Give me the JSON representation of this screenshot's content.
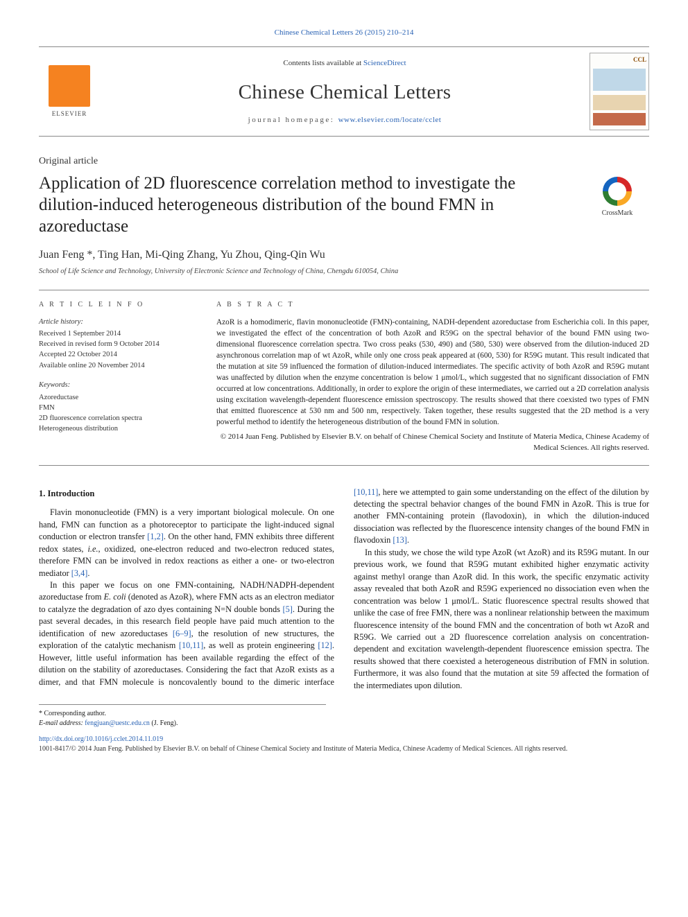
{
  "citation": "Chinese Chemical Letters 26 (2015) 210–214",
  "header": {
    "contents_prefix": "Contents lists available at ",
    "contents_link": "ScienceDirect",
    "journal_name": "Chinese Chemical Letters",
    "homepage_prefix": "journal homepage: ",
    "homepage_url": "www.elsevier.com/locate/cclet",
    "publisher_logo_text": "ELSEVIER",
    "cover_badge": "CCL"
  },
  "article": {
    "type": "Original article",
    "title": "Application of 2D fluorescence correlation method to investigate the dilution-induced heterogeneous distribution of the bound FMN in azoreductase",
    "crossmark_label": "CrossMark",
    "authors": "Juan Feng *, Ting Han, Mi-Qing Zhang, Yu Zhou, Qing-Qin Wu",
    "affiliation": "School of Life Science and Technology, University of Electronic Science and Technology of China, Chengdu 610054, China"
  },
  "info": {
    "heading": "A R T I C L E   I N F O",
    "history_label": "Article history:",
    "received": "Received 1 September 2014",
    "revised": "Received in revised form 9 October 2014",
    "accepted": "Accepted 22 October 2014",
    "online": "Available online 20 November 2014",
    "keywords_label": "Keywords:",
    "keywords": [
      "Azoreductase",
      "FMN",
      "2D fluorescence correlation spectra",
      "Heterogeneous distribution"
    ]
  },
  "abstract": {
    "heading": "A B S T R A C T",
    "text": "AzoR is a homodimeric, flavin mononucleotide (FMN)-containing, NADH-dependent azoreductase from Escherichia coli. In this paper, we investigated the effect of the concentration of both AzoR and R59G on the spectral behavior of the bound FMN using two-dimensional fluorescence correlation spectra. Two cross peaks (530, 490) and (580, 530) were observed from the dilution-induced 2D asynchronous correlation map of wt AzoR, while only one cross peak appeared at (600, 530) for R59G mutant. This result indicated that the mutation at site 59 influenced the formation of dilution-induced intermediates. The specific activity of both AzoR and R59G mutant was unaffected by dilution when the enzyme concentration is below 1 μmol/L, which suggested that no significant dissociation of FMN occurred at low concentrations. Additionally, in order to explore the origin of these intermediates, we carried out a 2D correlation analysis using excitation wavelength-dependent fluorescence emission spectroscopy. The results showed that there coexisted two types of FMN that emitted fluorescence at 530 nm and 500 nm, respectively. Taken together, these results suggested that the 2D method is a very powerful method to identify the heterogeneous distribution of the bound FMN in solution.",
    "copyright": "© 2014 Juan Feng. Published by Elsevier B.V. on behalf of Chinese Chemical Society and Institute of Materia Medica, Chinese Academy of Medical Sciences. All rights reserved."
  },
  "body": {
    "section1_heading": "1. Introduction",
    "p1_a": "Flavin mononucleotide (FMN) is a very important biological molecule. On one hand, FMN can function as a photoreceptor to participate the light-induced signal conduction or electron transfer ",
    "p1_ref1": "[1,2]",
    "p1_b": ". On the other hand, FMN exhibits three different redox states, ",
    "p1_ie": "i.e.",
    "p1_c": ", oxidized, one-electron reduced and two-electron reduced states, therefore FMN can be involved in redox reactions as either a one- or two-electron mediator ",
    "p1_ref2": "[3,4]",
    "p1_d": ".",
    "p2_a": "In this paper we focus on one FMN-containing, NADH/NADPH-dependent azoreductase from ",
    "p2_sp": "E. coli",
    "p2_b": " (denoted as AzoR), where FMN acts as an electron mediator to catalyze the degradation of azo dyes containing N=N double bonds ",
    "p2_ref1": "[5]",
    "p2_c": ". During the past several decades, in this research field people have paid much attention to the identification of new azoreductases ",
    "p2_ref2": "[6–9]",
    "p2_d": ", the resolution of new structures, the exploration of the catalytic mechanism ",
    "p2_ref3": "[10,11]",
    "p2_e": ", as well as protein engineering ",
    "p2_ref4": "[12]",
    "p2_f": ". However, little useful information has been available regarding the effect of the dilution on the stability of azoreductases. Considering the fact that AzoR exists as a ",
    "p3_a": "dimer, and that FMN molecule is noncovalently bound to the dimeric interface ",
    "p3_ref1": "[10,11]",
    "p3_b": ", here we attempted to gain some understanding on the effect of the dilution by detecting the spectral behavior changes of the bound FMN in AzoR. This is true for another FMN-containing protein (flavodoxin), in which the dilution-induced dissociation was reflected by the fluorescence intensity changes of the bound FMN in flavodoxin ",
    "p3_ref2": "[13]",
    "p3_c": ".",
    "p4": "In this study, we chose the wild type AzoR (wt AzoR) and its R59G mutant. In our previous work, we found that R59G mutant exhibited higher enzymatic activity against methyl orange than AzoR did. In this work, the specific enzymatic activity assay revealed that both AzoR and R59G experienced no dissociation even when the concentration was below 1 μmol/L. Static fluorescence spectral results showed that unlike the case of free FMN, there was a nonlinear relationship between the maximum fluorescence intensity of the bound FMN and the concentration of both wt AzoR and R59G. We carried out a 2D fluorescence correlation analysis on concentration-dependent and excitation wavelength-dependent fluorescence emission spectra. The results showed that there coexisted a heterogeneous distribution of FMN in solution. Furthermore, it was also found that the mutation at site 59 affected the formation of the intermediates upon dilution."
  },
  "footnotes": {
    "corresponding": "* Corresponding author.",
    "email_label": "E-mail address: ",
    "email": "fengjuan@uestc.edu.cn",
    "email_suffix": " (J. Feng)."
  },
  "doi": {
    "url": "http://dx.doi.org/10.1016/j.cclet.2014.11.019",
    "issn_line": "1001-8417/© 2014 Juan Feng. Published by Elsevier B.V. on behalf of Chinese Chemical Society and Institute of Materia Medica, Chinese Academy of Medical Sciences. All rights reserved."
  },
  "colors": {
    "link": "#2962b4",
    "rule": "#888888",
    "elsevier_orange": "#f58220"
  }
}
